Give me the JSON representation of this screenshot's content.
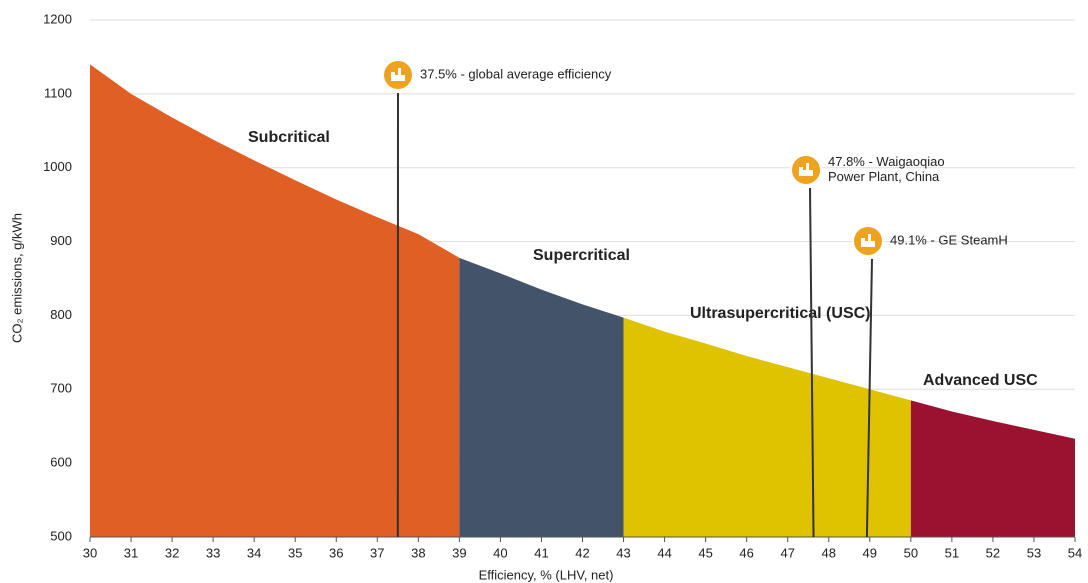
{
  "chart_data": {
    "type": "area",
    "x": [
      30,
      31,
      32,
      33,
      34,
      35,
      36,
      37,
      38,
      39,
      40,
      41,
      42,
      43,
      44,
      45,
      46,
      47,
      48,
      49,
      50,
      51,
      52,
      53,
      54
    ],
    "series": [
      {
        "values": [
          1140,
          1100,
          1068,
          1038,
          1010,
          983,
          957,
          933,
          910,
          878,
          857,
          835,
          815,
          797,
          778,
          762,
          745,
          730,
          715,
          700,
          685,
          670,
          657,
          645,
          633
        ]
      }
    ],
    "segments": [
      {
        "name": "Subcritical",
        "color": "#e05f25",
        "start": 30,
        "end": 39
      },
      {
        "name": "Supercritical",
        "color": "#43536a",
        "start": 39,
        "end": 43
      },
      {
        "name": "Ultrasupercritical (USC)",
        "color": "#dfc300",
        "start": 43,
        "end": 50
      },
      {
        "name": "Advanced USC",
        "color": "#9a1230",
        "start": 50,
        "end": 54
      }
    ],
    "annotations": [
      {
        "x": 37.5,
        "label": [
          "37.5% - global average efficiency"
        ]
      },
      {
        "x": 47.8,
        "label": [
          "47.8% - Waigaoqiao",
          "Power Plant, China"
        ]
      },
      {
        "x": 49.1,
        "label": [
          "49.1% - GE SteamH"
        ]
      }
    ],
    "xlabel": "Efficiency, % (LHV, net)",
    "ylabel": "CO₂ emissions, g/kWh",
    "xlim": [
      30,
      54
    ],
    "ylim": [
      500,
      1200
    ],
    "xticks": [
      30,
      31,
      32,
      33,
      34,
      35,
      36,
      37,
      38,
      39,
      40,
      41,
      42,
      43,
      44,
      45,
      46,
      47,
      48,
      49,
      50,
      51,
      52,
      53,
      54
    ],
    "yticks": [
      500,
      600,
      700,
      800,
      900,
      1000,
      1100,
      1200
    ],
    "grid": true
  }
}
